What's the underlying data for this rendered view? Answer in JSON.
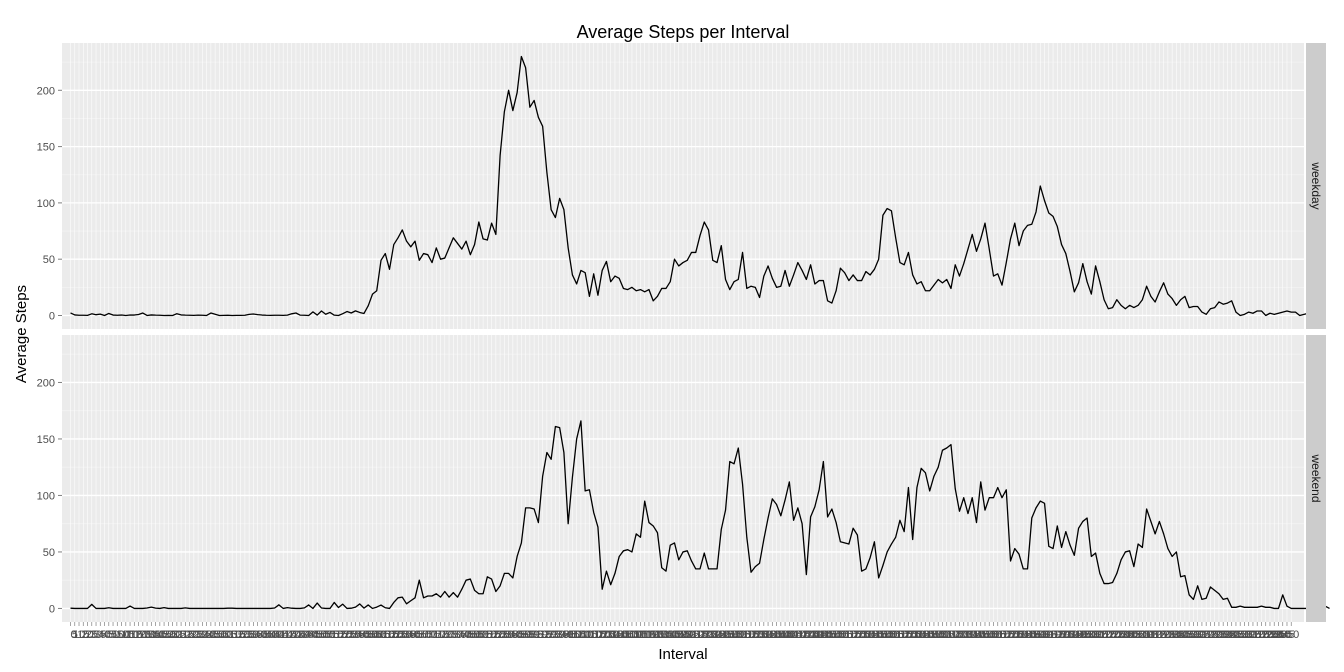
{
  "chart_data": {
    "type": "line",
    "title": "Average Steps per Interval",
    "xlabel": "Interval",
    "ylabel": "Average Steps",
    "ylim": [
      -12,
      242
    ],
    "yticks": [
      0,
      50,
      100,
      150,
      200
    ],
    "xlim": [
      -2,
      290
    ],
    "x_count": 288,
    "x_tick_labels_note": "every interval (0, 5, 10, … 2355) printed and overlapping",
    "first_x_tick": "0",
    "last_x_tick": "2355",
    "grid": true,
    "panels": [
      {
        "name": "weekday",
        "values": [
          2.3,
          0.5,
          0.2,
          0.2,
          0.1,
          1.5,
          0.7,
          1.2,
          0,
          1.8,
          0.4,
          0.2,
          0.4,
          0,
          0.4,
          0.4,
          0.9,
          2.2,
          0,
          0.5,
          0.3,
          0.2,
          0,
          0.1,
          0,
          1.6,
          0.5,
          0.3,
          0.2,
          0.1,
          0.3,
          0.2,
          0,
          2.2,
          1.1,
          0,
          0.1,
          0.2,
          0,
          0.1,
          0.1,
          0.2,
          1,
          1.3,
          0.8,
          0.4,
          0.2,
          0.1,
          0.2,
          0.2,
          0.1,
          0.3,
          1.5,
          2.2,
          0.3,
          0.2,
          0,
          3.2,
          0.4,
          4,
          1.1,
          2.7,
          0.3,
          0,
          1.6,
          3.5,
          2.2,
          4.1,
          2.7,
          1.8,
          8.7,
          19,
          22,
          49,
          55,
          41,
          63,
          69,
          76,
          66,
          61,
          66,
          49,
          55,
          54,
          47,
          60,
          50,
          51,
          60,
          69,
          64,
          59,
          66,
          54,
          63,
          83,
          68,
          67,
          82,
          72,
          142,
          181,
          200,
          182,
          198,
          230,
          220,
          185,
          191,
          176,
          168,
          127,
          94,
          87,
          104,
          94,
          60,
          36,
          28,
          40,
          38,
          17,
          37,
          18,
          40,
          48,
          30,
          35,
          33,
          24,
          23,
          25,
          22,
          23,
          21,
          23,
          13,
          17,
          24,
          24,
          30,
          50,
          44,
          47,
          49,
          56,
          56,
          71,
          83,
          76,
          49,
          47,
          62,
          32,
          23,
          30,
          32,
          56,
          24,
          26,
          25,
          16,
          35,
          44,
          33,
          25,
          26,
          40,
          26,
          36,
          47,
          40,
          32,
          45,
          28,
          31,
          31,
          13,
          11,
          22,
          42,
          38,
          31,
          36,
          31,
          31,
          39,
          36,
          41,
          50,
          89,
          95,
          93,
          69,
          47,
          45,
          56,
          36,
          28,
          30,
          22,
          22,
          27,
          32,
          29,
          32,
          24,
          45,
          35,
          46,
          59,
          72,
          57,
          68,
          82,
          59,
          35,
          37,
          27,
          47,
          68,
          82,
          62,
          75,
          80,
          81,
          92,
          115,
          102,
          91,
          88,
          79,
          63,
          55,
          39,
          21,
          29,
          46,
          30,
          19,
          44,
          30,
          14,
          6,
          7,
          14,
          9,
          6,
          9,
          7,
          9,
          14,
          26,
          17,
          12,
          21,
          29,
          19,
          15,
          9,
          14,
          17,
          7,
          8,
          8,
          3,
          1,
          6,
          7,
          12,
          10,
          11,
          13,
          3,
          0,
          1,
          3,
          2,
          4,
          4,
          0,
          2,
          1,
          2,
          3,
          4,
          3,
          3,
          0,
          1,
          2
        ]
      },
      {
        "name": "weekend",
        "values": [
          0.2,
          0,
          0,
          0,
          0,
          3.6,
          0,
          0,
          0,
          0.6,
          0,
          0,
          0,
          0,
          2.1,
          0,
          0,
          0,
          0.4,
          1.2,
          0.3,
          0,
          0.7,
          0,
          0,
          0,
          0,
          0.5,
          0,
          0,
          0,
          0,
          0,
          0,
          0,
          0,
          0,
          0.2,
          0.2,
          0,
          0,
          0,
          0,
          0,
          0,
          0,
          0,
          0,
          0.4,
          3.2,
          0,
          0.7,
          0.2,
          0,
          0,
          0.5,
          3.1,
          0,
          4.8,
          0.4,
          0,
          0,
          5.3,
          0.8,
          3.8,
          0,
          0.2,
          1.2,
          4,
          0.3,
          3.1,
          0,
          1.2,
          3,
          0.6,
          0,
          5.3,
          9.4,
          10,
          4.1,
          6.8,
          9.4,
          25,
          9.4,
          11,
          11,
          13,
          10,
          15,
          10,
          14,
          10,
          17,
          25,
          26,
          16,
          13,
          13,
          28,
          26,
          15,
          20,
          31,
          31,
          27,
          46,
          58,
          89,
          89,
          88,
          76,
          117,
          138,
          132,
          161,
          160,
          138,
          75,
          116,
          150,
          166,
          104,
          105,
          85,
          72,
          17,
          33,
          21,
          31,
          46,
          51,
          52,
          50,
          66,
          63,
          95,
          76,
          73,
          67,
          36,
          33,
          56,
          58,
          43,
          50,
          51,
          42,
          35,
          35,
          49,
          35,
          35,
          35,
          70,
          87,
          130,
          128,
          142,
          110,
          63,
          32,
          37,
          40,
          61,
          80,
          97,
          92,
          82,
          96,
          112,
          78,
          89,
          75,
          30,
          81,
          90,
          105,
          130,
          81,
          88,
          76,
          59,
          58,
          57,
          71,
          65,
          33,
          35,
          45,
          59,
          27,
          38,
          50,
          57,
          63,
          78,
          68,
          107,
          61,
          107,
          124,
          120,
          104,
          117,
          125,
          140,
          142,
          145,
          106,
          86,
          98,
          84,
          98,
          76,
          112,
          87,
          98,
          98,
          107,
          98,
          105,
          42,
          53,
          48,
          35,
          35,
          80,
          89,
          95,
          93,
          55,
          53,
          73,
          54,
          68,
          56,
          47,
          71,
          77,
          80,
          46,
          49,
          31,
          22,
          22,
          23,
          31,
          43,
          50,
          51,
          37,
          57,
          54,
          88,
          77,
          66,
          77,
          66,
          53,
          46,
          50,
          28,
          29,
          12,
          8,
          20,
          8,
          9,
          19,
          16,
          13,
          8,
          9,
          1,
          1,
          2,
          1,
          1,
          1,
          1,
          2,
          1,
          1,
          0,
          0,
          12,
          2,
          0,
          0,
          0,
          0,
          0,
          1,
          11,
          6,
          2,
          0
        ]
      }
    ]
  }
}
